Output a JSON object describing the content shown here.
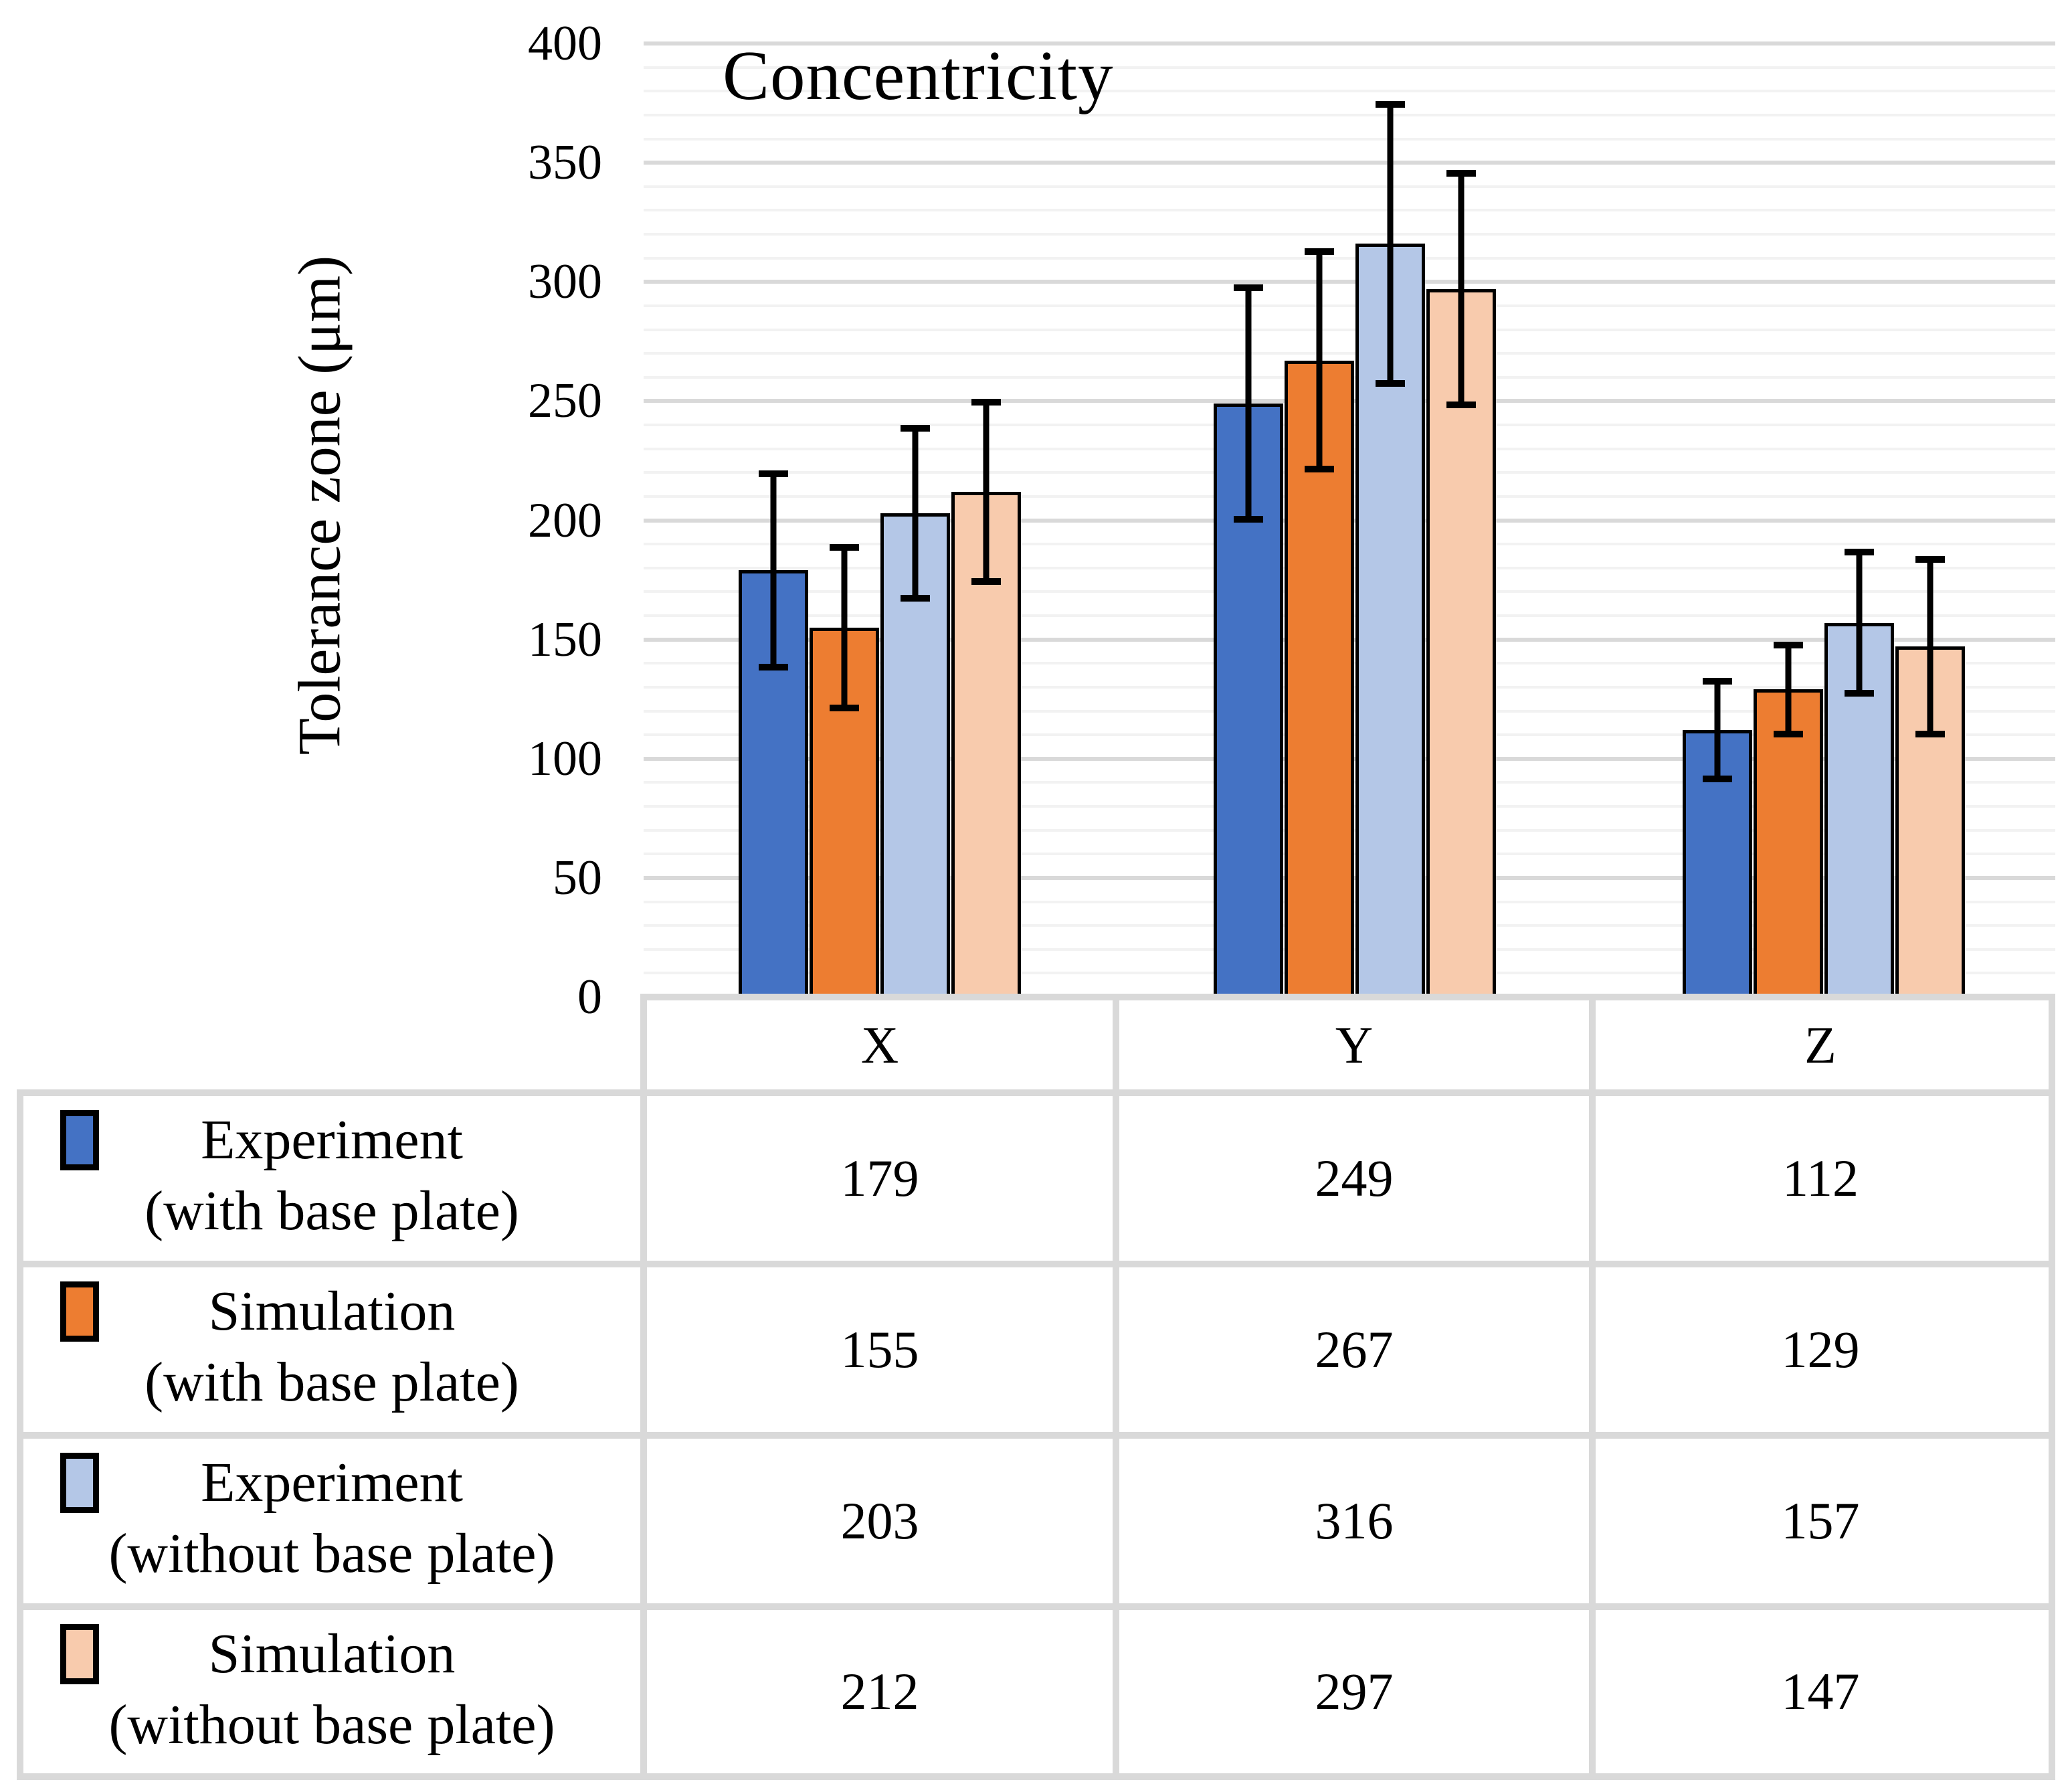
{
  "chart_data": {
    "type": "bar",
    "title": "Concentricity",
    "ylabel": "Tolerance zone (μm)",
    "ylim": [
      0,
      400
    ],
    "y_major_step": 50,
    "y_minor_step": 10,
    "y_ticks": [
      0,
      50,
      100,
      150,
      200,
      250,
      300,
      350,
      400
    ],
    "grid": true,
    "categories": [
      "X",
      "Y",
      "Z"
    ],
    "series": [
      {
        "name": "Experiment",
        "scope": "(with base plate)",
        "color": "#4472C4",
        "values": [
          179,
          249,
          112
        ],
        "errors": [
          42,
          50,
          22
        ]
      },
      {
        "name": "Simulation",
        "scope": "(with base plate)",
        "color": "#ED7D31",
        "values": [
          155,
          267,
          129
        ],
        "errors": [
          35,
          47,
          20
        ]
      },
      {
        "name": "Experiment",
        "scope": "(without base plate)",
        "color": "#B4C7E7",
        "values": [
          203,
          316,
          157
        ],
        "errors": [
          37,
          60,
          31
        ]
      },
      {
        "name": "Simulation",
        "scope": "(without base plate)",
        "color": "#F8CBAD",
        "values": [
          212,
          297,
          147
        ],
        "errors": [
          39,
          50,
          38
        ]
      }
    ],
    "legend_position": "table-left-column",
    "error_bar_color": "#000000"
  },
  "styles": {
    "background": "#FFFFFF",
    "text_color": "#000000",
    "bar_border_color": "#000000",
    "major_grid_color": "#D9D9D9",
    "minor_grid_color": "#F2F2F2",
    "table_border_color": "#D9D9D9"
  }
}
